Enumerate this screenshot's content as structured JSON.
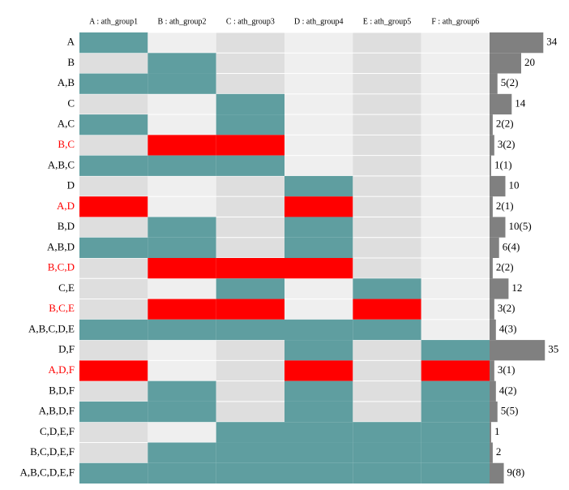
{
  "chart_data": {
    "type": "upset",
    "columns": [
      "A : ath_group1",
      "B : ath_group2",
      "C : ath_group3",
      "D : ath_group4",
      "E : ath_group5",
      "F : ath_group6"
    ],
    "categories": [
      "A",
      "B",
      "A,B",
      "C",
      "A,C",
      "B,C",
      "A,B,C",
      "D",
      "A,D",
      "B,D",
      "A,B,D",
      "B,C,D",
      "C,E",
      "B,C,E",
      "A,B,C,D,E",
      "D,F",
      "A,D,F",
      "B,D,F",
      "A,B,D,F",
      "C,D,E,F",
      "B,C,D,E,F",
      "A,B,C,D,E,F"
    ],
    "highlighted": [
      false,
      false,
      false,
      false,
      false,
      true,
      false,
      false,
      true,
      false,
      false,
      true,
      false,
      true,
      false,
      false,
      true,
      false,
      false,
      false,
      false,
      false
    ],
    "values": [
      34,
      20,
      5,
      14,
      2,
      3,
      1,
      10,
      2,
      10,
      6,
      2,
      12,
      3,
      4,
      35,
      3,
      4,
      5,
      1,
      2,
      9
    ],
    "value_labels": [
      "34",
      "20",
      "5(2)",
      "14",
      "2(2)",
      "3(2)",
      "1(1)",
      "10",
      "2(1)",
      "10(5)",
      "6(4)",
      "2(2)",
      "12",
      "3(2)",
      "4(3)",
      "35",
      "3(1)",
      "4(2)",
      "5(5)",
      "1",
      "2",
      "9(8)"
    ],
    "member_color": "#5f9ea0",
    "highlight_color": "#ff0000",
    "bar_color": "#808080"
  }
}
